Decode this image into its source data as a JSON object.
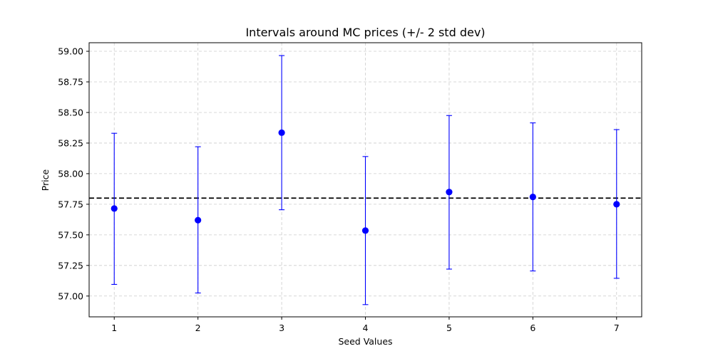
{
  "chart_data": {
    "type": "scatter",
    "title": "Intervals around MC prices (+/- 2 std dev)",
    "xlabel": "Seed Values",
    "ylabel": "Price",
    "xlim": [
      0.7,
      7.3
    ],
    "ylim": [
      56.83,
      59.07
    ],
    "x_ticks": [
      1,
      2,
      3,
      4,
      5,
      6,
      7
    ],
    "y_ticks": [
      57.0,
      57.25,
      57.5,
      57.75,
      58.0,
      58.25,
      58.5,
      58.75,
      59.0
    ],
    "y_tick_labels": [
      "57.00",
      "57.25",
      "57.50",
      "57.75",
      "58.00",
      "58.25",
      "58.50",
      "58.75",
      "59.00"
    ],
    "grid": true,
    "reference_line": {
      "y": 57.8,
      "style": "dashed",
      "color": "#000000"
    },
    "points": [
      {
        "x": 1,
        "y": 57.715,
        "lower": 57.095,
        "upper": 58.33
      },
      {
        "x": 2,
        "y": 57.62,
        "lower": 57.025,
        "upper": 58.22
      },
      {
        "x": 3,
        "y": 58.335,
        "lower": 57.705,
        "upper": 58.965
      },
      {
        "x": 4,
        "y": 57.535,
        "lower": 56.93,
        "upper": 58.14
      },
      {
        "x": 5,
        "y": 57.85,
        "lower": 57.22,
        "upper": 58.475
      },
      {
        "x": 6,
        "y": 57.81,
        "lower": 57.205,
        "upper": 58.415
      },
      {
        "x": 7,
        "y": 57.75,
        "lower": 57.145,
        "upper": 58.36
      }
    ],
    "colors": {
      "marker": "#0000ff",
      "errorbar": "#0000ff",
      "grid": "#cccccc"
    }
  }
}
